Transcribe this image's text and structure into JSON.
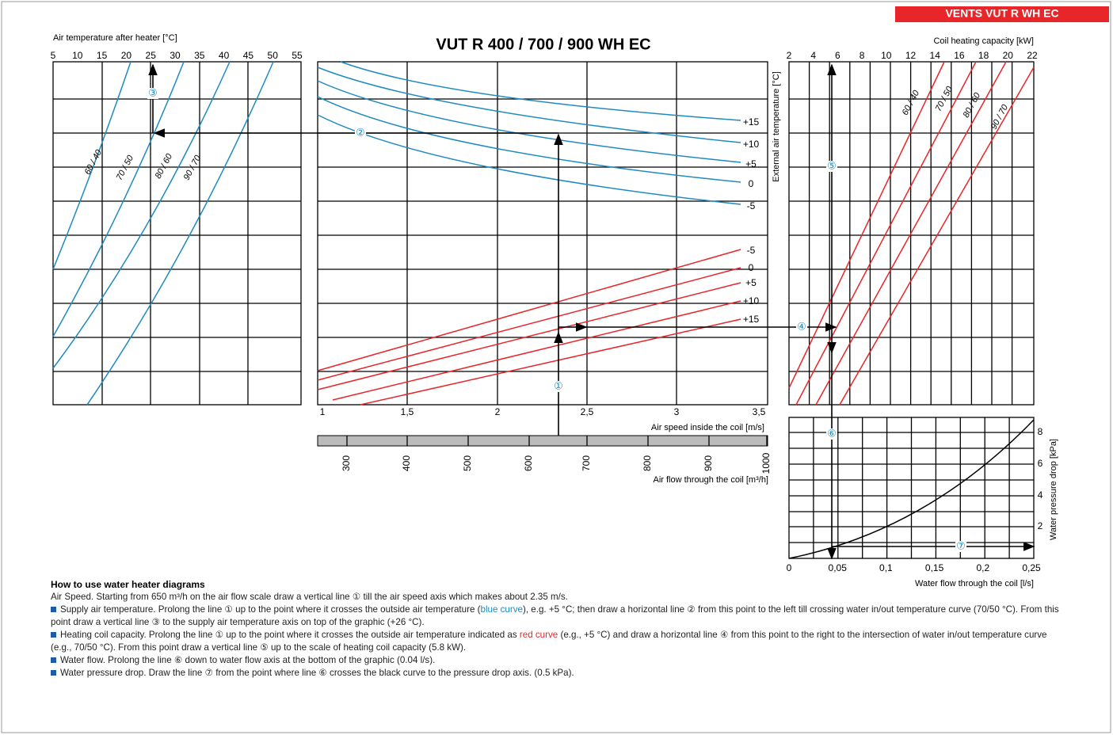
{
  "brand": "VENTS VUT R WH EC",
  "title": "VUT R 400 / 700 / 900 WH EC",
  "left_panel": {
    "axis_label": "Air temperature after heater [°C]",
    "ticks": [
      "5",
      "10",
      "15",
      "20",
      "25",
      "30",
      "35",
      "40",
      "45",
      "50",
      "55"
    ],
    "curve_labels": [
      "60 / 40",
      "70 / 50",
      "80 / 60",
      "90 / 70"
    ],
    "marker": "③"
  },
  "center_panel": {
    "speed_ticks": [
      "1",
      "1,5",
      "2",
      "2,5",
      "3",
      "3,5"
    ],
    "speed_label": "Air speed inside the coil [m/s]",
    "flow_ticks": [
      "300",
      "400",
      "500",
      "600",
      "700",
      "800",
      "900",
      "1000"
    ],
    "flow_label": "Air flow through the coil [m³/h]",
    "blue_labels": [
      "+15",
      "+10",
      "+5",
      "0",
      "-5"
    ],
    "red_labels": [
      "-5",
      "0",
      "+5",
      "+10",
      "+15"
    ],
    "external_label": "External air temperature [°C]",
    "markers": [
      "①",
      "②",
      "④"
    ]
  },
  "right_panel": {
    "axis_label": "Coil heating capacity [kW]",
    "ticks": [
      "2",
      "4",
      "6",
      "8",
      "10",
      "12",
      "14",
      "16",
      "18",
      "20",
      "22"
    ],
    "curve_labels": [
      "60 / 40",
      "70 / 50",
      "80 / 60",
      "90 / 70"
    ],
    "marker": "⑤"
  },
  "pressure_panel": {
    "x_ticks": [
      "0",
      "0,05",
      "0,1",
      "0,15",
      "0,2",
      "0,25"
    ],
    "x_label": "Water flow through the coil [l/s]",
    "y_ticks": [
      "2",
      "4",
      "6",
      "8"
    ],
    "y_label": "Water pressure drop [kPa]",
    "markers": [
      "⑥",
      "⑦"
    ]
  },
  "instructions": {
    "heading": "How to use water heater diagrams",
    "paragraphs": [
      [
        "Air Speed. Starting from 650 m³/h on the air flow scale draw a vertical line ",
        "①",
        " till the air speed axis which makes about  2.35 m/s."
      ],
      [
        "Supply air temperature. Prolong the line ",
        "①",
        " up to the point where it crosses the outside air temperature (",
        "blue curve",
        "), e.g. +5 °C; then draw a horizontal line ",
        "②",
        " from this point to the left till crossing  water in/out temperature curve (70/50 °C). From this point draw a vertical line ",
        "③",
        " to the supply air temperature axis on top of the graphic (+26 °C)."
      ],
      [
        "Heating coil capacity. Prolong the line ",
        "①",
        " up to the point where it crosses the outside air temperature indicated as ",
        "red curve",
        " (e.g., +5 °C) and draw a horizontal line ",
        "④",
        " from this point to the right to the intersection of water in/out temperature curve (e.g., 70/50 °C). From this point draw a vertical line ",
        "⑤",
        " up to the scale of heating coil capacity (5.8 kW)."
      ],
      [
        "Water flow. Prolong the line ",
        "⑥",
        " down to water flow axis at the bottom of the graphic  (0.04 l/s)."
      ],
      [
        "Water pressure drop. Draw the line ",
        "⑦",
        " from the point where line ",
        "⑥",
        " crosses the black curve to the pressure drop axis. (0.5 kPa)."
      ]
    ]
  }
}
